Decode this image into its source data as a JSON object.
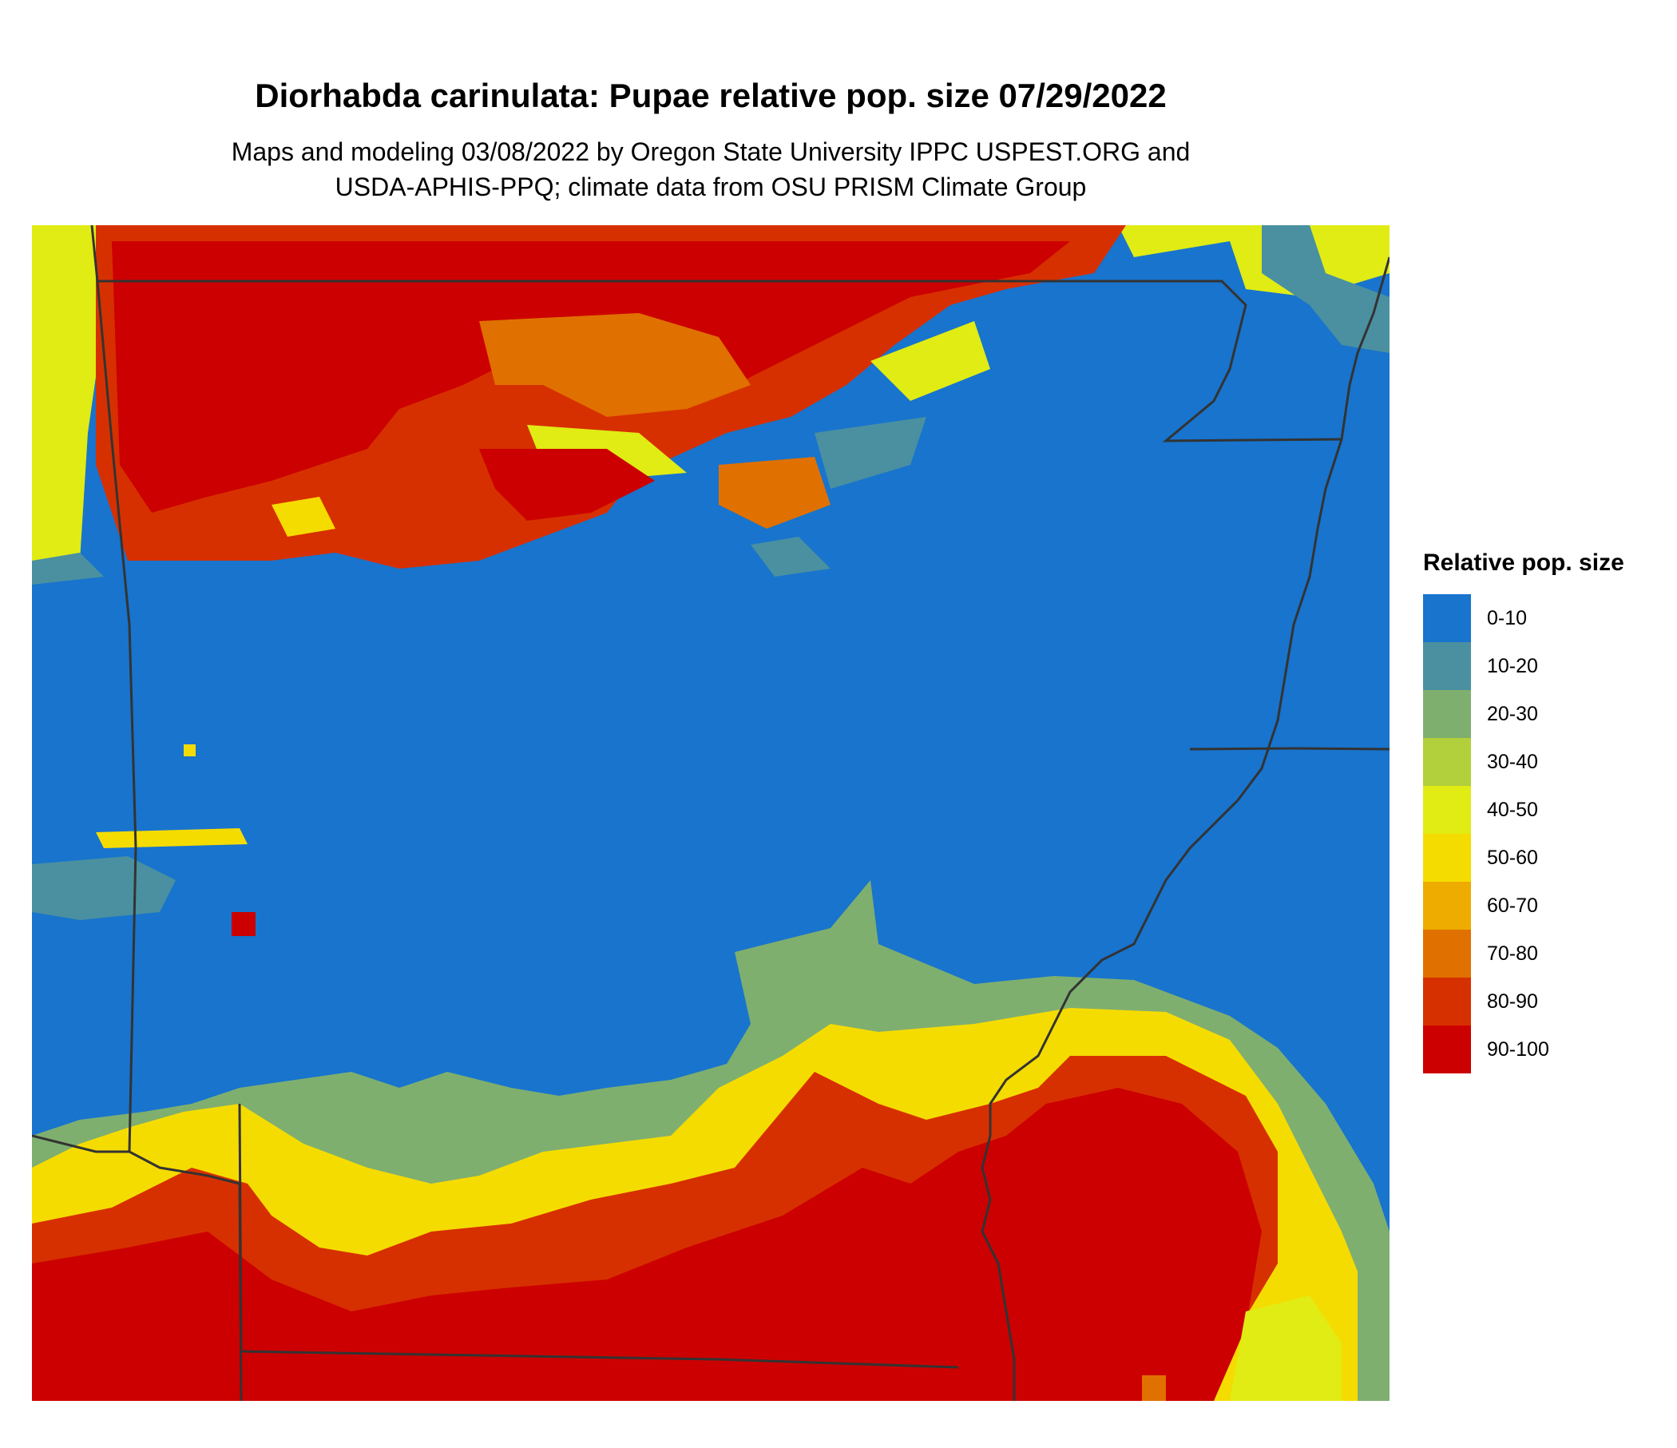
{
  "title": "Diorhabda carinulata: Pupae relative pop. size 07/29/2022",
  "subtitle_line1": "Maps and modeling 03/08/2022 by Oregon State University IPPC USPEST.ORG and",
  "subtitle_line2": "USDA-APHIS-PPQ; climate data from OSU PRISM Climate Group",
  "legend": {
    "title": "Relative pop. size",
    "items": [
      {
        "label": "0-10",
        "color": "#1874CD"
      },
      {
        "label": "10-20",
        "color": "#4A90A0"
      },
      {
        "label": "20-30",
        "color": "#7FAF6F"
      },
      {
        "label": "30-40",
        "color": "#B2CF3C"
      },
      {
        "label": "40-50",
        "color": "#E0EC14"
      },
      {
        "label": "50-60",
        "color": "#F5DC00"
      },
      {
        "label": "60-70",
        "color": "#EEAB00"
      },
      {
        "label": "70-80",
        "color": "#E07000"
      },
      {
        "label": "80-90",
        "color": "#D73000"
      },
      {
        "label": "90-100",
        "color": "#CC0000"
      }
    ]
  },
  "colors": {
    "boundary": "#333333",
    "background": "#ffffff"
  }
}
